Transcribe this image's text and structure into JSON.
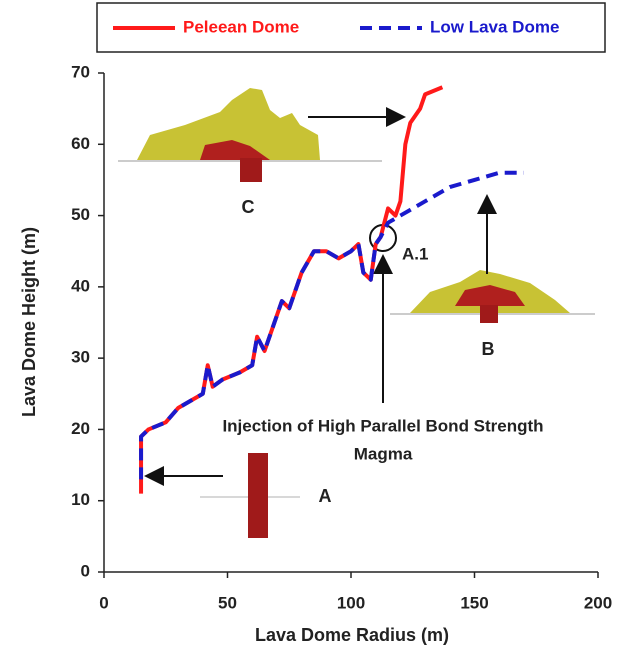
{
  "chart_data": {
    "type": "line",
    "xlabel": "Lava Dome Radius (m)",
    "ylabel": "Lava Dome Height (m)",
    "xlim": [
      0,
      200
    ],
    "xticks": [
      0,
      50,
      100,
      150,
      200
    ],
    "ylim": [
      0,
      70
    ],
    "yticks": [
      0,
      10,
      20,
      30,
      40,
      50,
      60,
      70
    ],
    "legend": "top",
    "series": [
      {
        "name": "Peleean Dome",
        "color": "#ff1a1a",
        "style": "solid",
        "x": [
          15,
          15,
          18,
          25,
          30,
          35,
          40,
          42,
          44,
          48,
          55,
          60,
          62,
          65,
          70,
          72,
          75,
          78,
          80,
          85,
          90,
          95,
          100,
          103,
          105,
          108,
          110,
          112,
          115,
          118,
          120,
          122,
          124,
          126,
          128,
          130,
          137
        ],
        "values": [
          11,
          19,
          20,
          21,
          23,
          24,
          25,
          29,
          26,
          27,
          28,
          29,
          33,
          31,
          36,
          38,
          37,
          40,
          42,
          45,
          45,
          44,
          45,
          46,
          42,
          41,
          46,
          47,
          51,
          50,
          52,
          60,
          63,
          64,
          65,
          67,
          68
        ]
      },
      {
        "name": "Low Lava Dome",
        "color": "#1a1acc",
        "style": "dashed",
        "x": [
          15,
          15,
          18,
          25,
          30,
          35,
          40,
          42,
          44,
          48,
          55,
          60,
          62,
          65,
          70,
          72,
          75,
          78,
          80,
          85,
          90,
          95,
          100,
          103,
          105,
          108,
          110,
          112,
          115,
          120,
          130,
          140,
          150,
          160,
          170
        ],
        "values": [
          13,
          19,
          20,
          21,
          23,
          24,
          25,
          29,
          26,
          27,
          28,
          29,
          33,
          31,
          36,
          38,
          37,
          40,
          42,
          45,
          45,
          44,
          45,
          46,
          42,
          41,
          46,
          47,
          49,
          50,
          52,
          54,
          55,
          56,
          56
        ]
      }
    ],
    "annotations": [
      "C",
      "A",
      "B",
      "A.1",
      "Injection of High Parallel Bond Strength",
      "Magma"
    ]
  }
}
